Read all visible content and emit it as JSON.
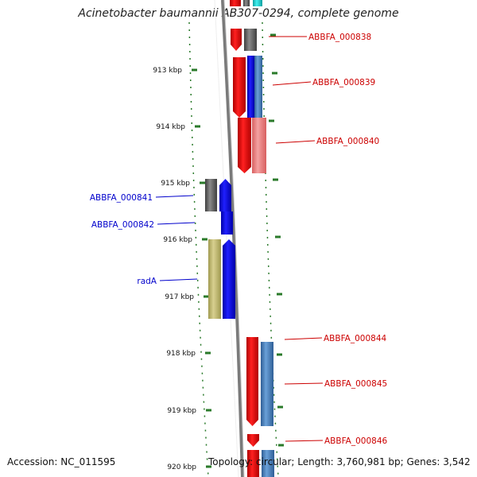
{
  "title": "Acinetobacter baumannii AB307-0294, complete genome",
  "footer": {
    "accession": "Accession: NC_011595",
    "topology": "Topology: circular; Length: 3,760,981 bp; Genes: 3,542"
  },
  "colors": {
    "red_label": "#cc0000",
    "blue_label": "#0000cc",
    "tick": "#2a7a2a",
    "backbone": "#7a7a7a"
  },
  "ticks": [
    {
      "label": "913 kbp"
    },
    {
      "label": "914 kbp"
    },
    {
      "label": "915 kbp"
    },
    {
      "label": "916 kbp"
    },
    {
      "label": "917 kbp"
    },
    {
      "label": "918 kbp"
    },
    {
      "label": "919 kbp"
    },
    {
      "label": "920 kbp"
    }
  ],
  "genes": [
    {
      "label": "ABBFA_000838",
      "strand": "reverse"
    },
    {
      "label": "ABBFA_000839",
      "strand": "reverse"
    },
    {
      "label": "ABBFA_000840",
      "strand": "reverse"
    },
    {
      "label": "ABBFA_000841",
      "strand": "forward"
    },
    {
      "label": "ABBFA_000842",
      "strand": "forward"
    },
    {
      "label": "radA",
      "strand": "forward"
    },
    {
      "label": "ABBFA_000844",
      "strand": "reverse"
    },
    {
      "label": "ABBFA_000845",
      "strand": "reverse"
    },
    {
      "label": "ABBFA_000846",
      "strand": "reverse"
    }
  ]
}
